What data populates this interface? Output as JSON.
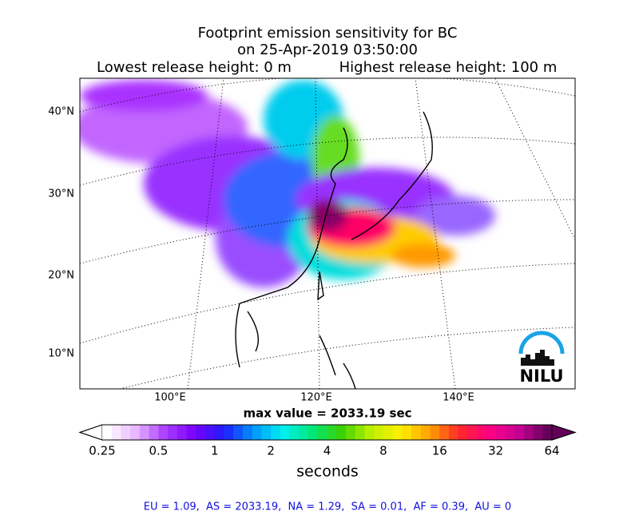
{
  "header": {
    "title": [
      "Footprint emission sensitivity for BC",
      "on 25-Apr-2019 03:50:00"
    ],
    "release_low": "Lowest release height: 0 m",
    "release_high": "Highest release height: 100 m"
  },
  "map": {
    "lat_labels": [
      "40°N",
      "30°N",
      "20°N",
      "10°N"
    ],
    "lon_labels": [
      "100°E",
      "120°E",
      "140°E"
    ],
    "logo": "NILU"
  },
  "max_value": "max value = 2033.19 sec",
  "colorbar": {
    "ticks": [
      "0.25",
      "0.5",
      "1",
      "2",
      "4",
      "8",
      "16",
      "32",
      "64"
    ],
    "label": "seconds"
  },
  "footer": "EU = 1.09,  AS = 2033.19,  NA = 1.29,  SA = 0.01,  AF = 0.39,  AU = 0"
}
